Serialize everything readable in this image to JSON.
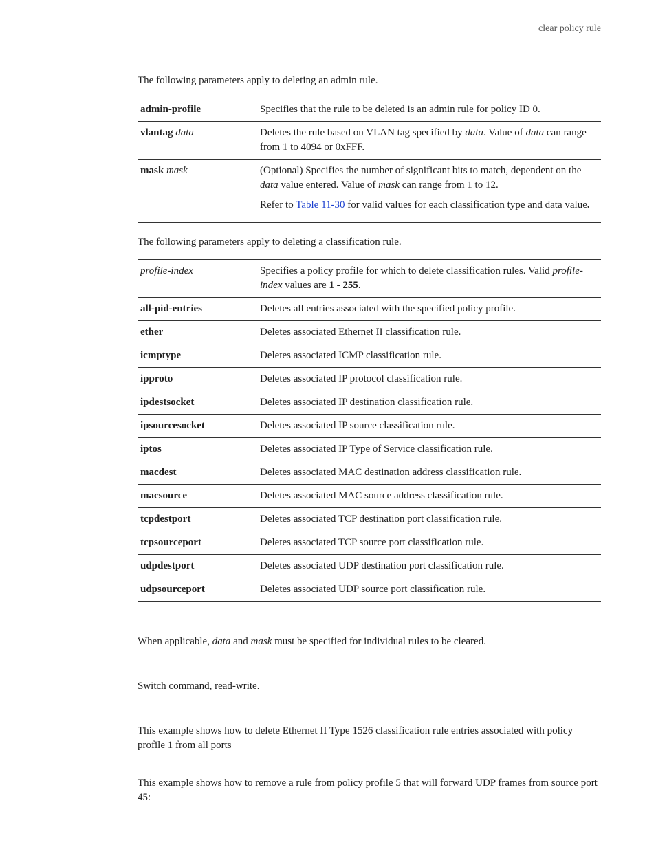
{
  "header": {
    "right": "clear policy rule"
  },
  "intro1": "The following parameters apply to deleting an admin rule.",
  "table1": {
    "rows": [
      {
        "term_bold": "admin-profile",
        "term_ital": "",
        "desc": [
          {
            "t": "Specifies that the rule to be deleted is an admin rule for policy ID 0."
          }
        ]
      },
      {
        "term_bold": "vlantag",
        "term_ital": "data",
        "desc": [
          {
            "pre": "Deletes the rule based on VLAN tag specified by ",
            "i1": "data",
            "mid": ". Value of ",
            "i2": "data",
            "post": " can range from 1 to 4094 or 0xFFF."
          }
        ]
      },
      {
        "term_bold": "mask",
        "term_ital": "mask",
        "desc": [
          {
            "pre": "(Optional) Specifies the number of significant bits to match, dependent on the ",
            "i1": "data",
            "mid": " value entered. Value of ",
            "i2": "mask",
            "post": " can range from 1 to 12."
          },
          {
            "pre": "Refer to ",
            "link": "Table 11-30",
            "post": " for valid values for each classification type and data value",
            "b": "."
          }
        ]
      }
    ]
  },
  "intro2": "The following parameters apply to deleting a classification rule.",
  "table2": {
    "rows": [
      {
        "term_ital": "profile-index",
        "desc_pre": "Specifies a policy profile for which to delete classification rules. Valid ",
        "desc_i": "profile-index",
        "desc_mid": " values are ",
        "desc_b1": "1",
        "desc_mid2": " - ",
        "desc_b2": "255",
        "desc_post": "."
      },
      {
        "term_bold": "all-pid-entries",
        "desc": "Deletes all entries associated with the specified policy profile."
      },
      {
        "term_bold": "ether",
        "desc": "Deletes associated Ethernet II classification rule."
      },
      {
        "term_bold": "icmptype",
        "desc": "Deletes associated ICMP classification rule."
      },
      {
        "term_bold": "ipproto",
        "desc": "Deletes associated IP protocol classification rule."
      },
      {
        "term_bold": "ipdestsocket",
        "desc": "Deletes associated IP destination classification rule."
      },
      {
        "term_bold": "ipsourcesocket",
        "desc": "Deletes associated IP source classification rule."
      },
      {
        "term_bold": "iptos",
        "desc": "Deletes associated IP Type of Service classification rule."
      },
      {
        "term_bold": "macdest",
        "desc": "Deletes associated MAC destination address classification rule."
      },
      {
        "term_bold": "macsource",
        "desc": "Deletes associated MAC source address classification rule."
      },
      {
        "term_bold": "tcpdestport",
        "desc": "Deletes associated TCP destination port classification rule."
      },
      {
        "term_bold": "tcpsourceport",
        "desc": "Deletes associated TCP source port classification rule."
      },
      {
        "term_bold": "udpdestport",
        "desc": "Deletes associated UDP destination port classification rule."
      },
      {
        "term_bold": "udpsourceport",
        "desc": "Deletes associated UDP source port classification rule."
      }
    ]
  },
  "note": {
    "pre": "When applicable, ",
    "i1": "data",
    "mid": " and ",
    "i2": "mask",
    "post": " must be specified for individual rules to be cleared."
  },
  "mode": "Switch command, read-write.",
  "example1": "This example shows how to delete Ethernet II Type 1526 classification rule entries associated with policy profile 1 from all ports",
  "example2": "This example shows how to remove a rule from policy profile 5 that will forward UDP frames from source port 45:"
}
